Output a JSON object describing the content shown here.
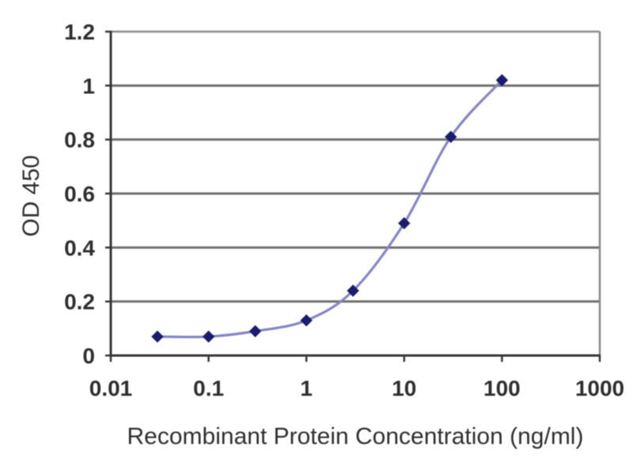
{
  "chart_data": {
    "type": "line",
    "title": "",
    "xlabel": "Recombinant Protein Concentration (ng/ml)",
    "ylabel": "OD 450",
    "x_scale": "log",
    "xlim": [
      0.01,
      1000
    ],
    "ylim": [
      0,
      1.2
    ],
    "x_tick_values": [
      0.01,
      0.1,
      1,
      10,
      100,
      1000
    ],
    "x_tick_labels": [
      "0.01",
      "0.1",
      "1",
      "10",
      "100",
      "1000"
    ],
    "y_tick_values": [
      0,
      0.2,
      0.4,
      0.6,
      0.8,
      1,
      1.2
    ],
    "y_tick_labels": [
      "0",
      "0.2",
      "0.4",
      "0.6",
      "0.8",
      "1",
      "1.2"
    ],
    "grid": "horizontal",
    "legend_position": "none",
    "series": [
      {
        "name": "OD 450",
        "marker": "diamond",
        "smooth": true,
        "x": [
          0.03,
          0.1,
          0.3,
          1,
          3,
          10,
          30,
          100
        ],
        "y": [
          0.07,
          0.07,
          0.09,
          0.13,
          0.24,
          0.49,
          0.81,
          1.02
        ]
      }
    ],
    "colors": {
      "line": "#8585c8",
      "marker": "#1c1c6e",
      "grid": "#707070",
      "frame": "#8a8a8a",
      "axis": "#383838",
      "tick_text": "#2f2f2f",
      "label_text": "#303030",
      "background": "#ffffff"
    }
  }
}
